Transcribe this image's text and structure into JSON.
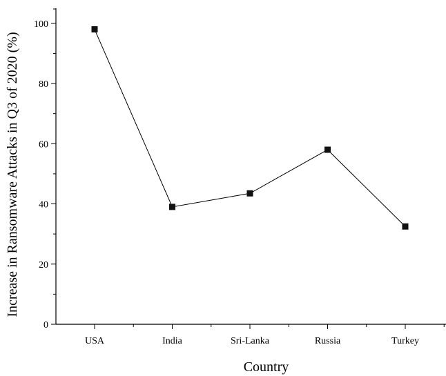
{
  "chart_data": {
    "type": "line",
    "title": "",
    "xlabel": "Country",
    "ylabel": "Increase in Ransomware Attacks in Q3 of 2020 (%)",
    "categories": [
      "USA",
      "India",
      "Sri-Lanka",
      "Russia",
      "Turkey"
    ],
    "series": [
      {
        "values": [
          98,
          39,
          43.5,
          58,
          32.5
        ],
        "marker": "square",
        "color": "#111111"
      }
    ],
    "ylim": [
      0,
      105
    ],
    "yticks": [
      0,
      20,
      40,
      60,
      80,
      100
    ],
    "grid": false,
    "legend": "none"
  }
}
